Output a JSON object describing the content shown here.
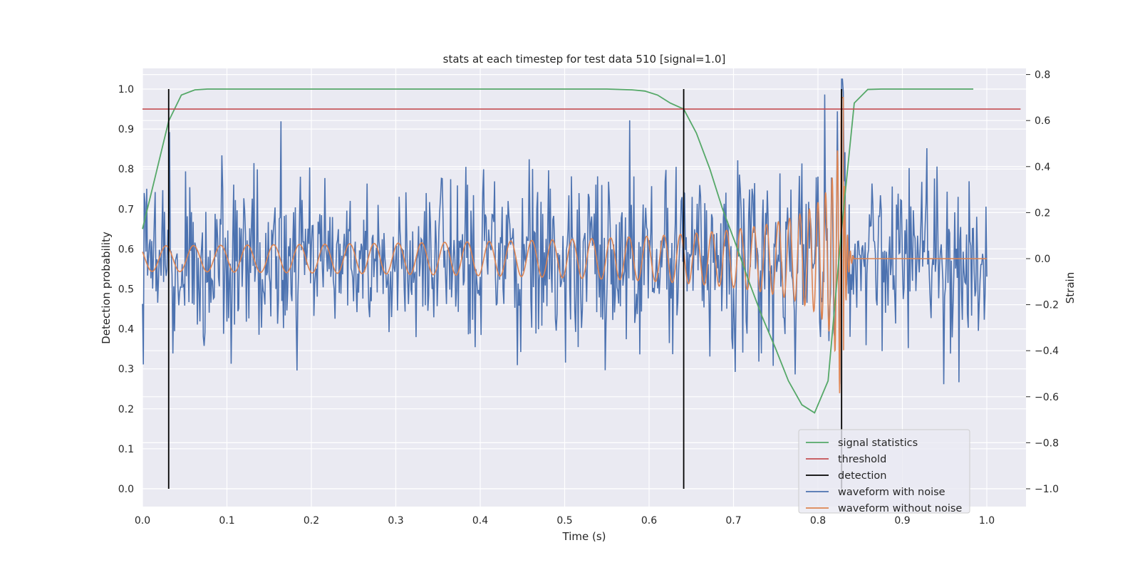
{
  "chart_data": {
    "type": "line",
    "title": "stats at each timestep for test data 510 [signal=1.0]",
    "xlabel": "Time (s)",
    "ylabel_left": "Detection probability",
    "ylabel_right": "Strain",
    "xlim": [
      0.0,
      1.05
    ],
    "ylim_left": [
      -0.05,
      1.05
    ],
    "ylim_right": [
      -1.08,
      0.82
    ],
    "x_ticks": [
      "0.0",
      "0.1",
      "0.2",
      "0.3",
      "0.4",
      "0.5",
      "0.6",
      "0.7",
      "0.8",
      "0.9",
      "1.0"
    ],
    "y_ticks_left": [
      "0.0",
      "0.1",
      "0.2",
      "0.3",
      "0.4",
      "0.5",
      "0.6",
      "0.7",
      "0.8",
      "0.9",
      "1.0"
    ],
    "y_ticks_right": [
      "−1.0",
      "−0.8",
      "−0.6",
      "−0.4",
      "−0.2",
      "0.0",
      "0.2",
      "0.4",
      "0.6",
      "0.8"
    ],
    "grid": true,
    "legend_position": "lower-right",
    "series": [
      {
        "name": "signal statistics",
        "axis": "left",
        "color": "#55a868",
        "x": [
          0.0,
          0.015,
          0.031,
          0.046,
          0.062,
          0.077,
          0.093,
          0.2,
          0.4,
          0.55,
          0.58,
          0.595,
          0.61,
          0.625,
          0.641,
          0.656,
          0.672,
          0.687,
          0.703,
          0.718,
          0.734,
          0.75,
          0.765,
          0.781,
          0.796,
          0.812,
          0.828,
          0.843,
          0.859,
          0.875,
          0.95,
          0.984
        ],
        "y": [
          0.65,
          0.78,
          0.92,
          0.985,
          0.998,
          1.0,
          1.0,
          1.0,
          1.0,
          1.0,
          0.998,
          0.995,
          0.985,
          0.965,
          0.95,
          0.89,
          0.8,
          0.7,
          0.61,
          0.52,
          0.43,
          0.35,
          0.27,
          0.21,
          0.19,
          0.27,
          0.65,
          0.965,
          0.999,
          1.0,
          1.0,
          1.0
        ]
      },
      {
        "name": "threshold",
        "axis": "left",
        "color": "#c44e52",
        "x": [
          0.0,
          1.04
        ],
        "y": [
          0.95,
          0.95
        ]
      },
      {
        "name": "detection",
        "axis": "left",
        "color": "#000000",
        "type": "vlines",
        "x": [
          0.031,
          0.641,
          0.828
        ],
        "ymin": 0.0,
        "ymax": 1.0
      },
      {
        "name": "waveform with noise",
        "axis": "right",
        "color": "#4c72b0",
        "x": [
          0.0,
          1.0
        ],
        "noise_std": 0.18,
        "seed": 510
      },
      {
        "name": "waveform without noise",
        "axis": "right",
        "color": "#dd8452",
        "x": [
          0.0,
          1.0
        ],
        "merger_time": 0.83
      }
    ]
  },
  "legend": [
    {
      "label": "signal statistics",
      "color": "#55a868"
    },
    {
      "label": "threshold",
      "color": "#c44e52"
    },
    {
      "label": "detection",
      "color": "#000000"
    },
    {
      "label": "waveform with noise",
      "color": "#4c72b0"
    },
    {
      "label": "waveform without noise",
      "color": "#dd8452"
    }
  ]
}
